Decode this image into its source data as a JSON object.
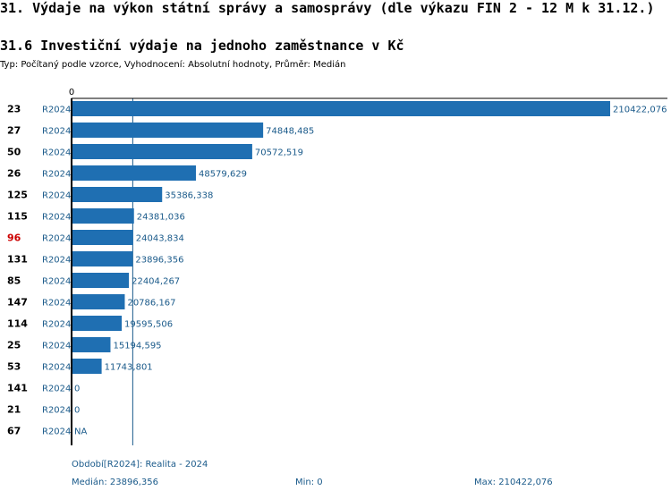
{
  "header": {
    "title": "31. Výdaje na výkon státní správy a samosprávy (dle výkazu FIN 2 - 12 M k 31.12.)",
    "subtitle": "31.6 Investiční výdaje na jednoho zaměstnance v Kč",
    "description": "Typ: Počítaný podle vzorce, Vyhodnocení: Absolutní hodnoty, Průměr: Medián"
  },
  "chart_data": {
    "type": "bar",
    "orientation": "horizontal",
    "xlim": [
      0,
      210422.076
    ],
    "axis_zero_label": "0",
    "median": 23896.356,
    "categories": [
      "23",
      "27",
      "50",
      "26",
      "125",
      "115",
      "96",
      "131",
      "85",
      "147",
      "114",
      "25",
      "53",
      "141",
      "21",
      "67"
    ],
    "period_labels": [
      "R2024",
      "R2024",
      "R2024",
      "R2024",
      "R2024",
      "R2024",
      "R2024",
      "R2024",
      "R2024",
      "R2024",
      "R2024",
      "R2024",
      "R2024",
      "R2024",
      "R2024",
      "R2024"
    ],
    "values": [
      210422.076,
      74848.485,
      70572.519,
      48579.629,
      35386.338,
      24381.036,
      24043.834,
      23896.356,
      22404.267,
      20786.167,
      19595.506,
      15194.595,
      11743.801,
      0,
      0,
      null
    ],
    "value_labels": [
      "210422,076",
      "74848,485",
      "70572,519",
      "48579,629",
      "35386,338",
      "24381,036",
      "24043,834",
      "23896,356",
      "22404,267",
      "20786,167",
      "19595,506",
      "15194,595",
      "11743,801",
      "0",
      "0",
      "NA"
    ],
    "highlight_category": "96",
    "colors": {
      "bar": "#1f6fb2",
      "label": "#1a5a8a",
      "highlight": "#cc0000",
      "median_line": "#1a5a8a"
    }
  },
  "footer": {
    "period": "Období[R2024]: Realita - 2024",
    "median": "Medián: 23896,356",
    "min": "Min: 0",
    "max": "Max: 210422,076"
  }
}
